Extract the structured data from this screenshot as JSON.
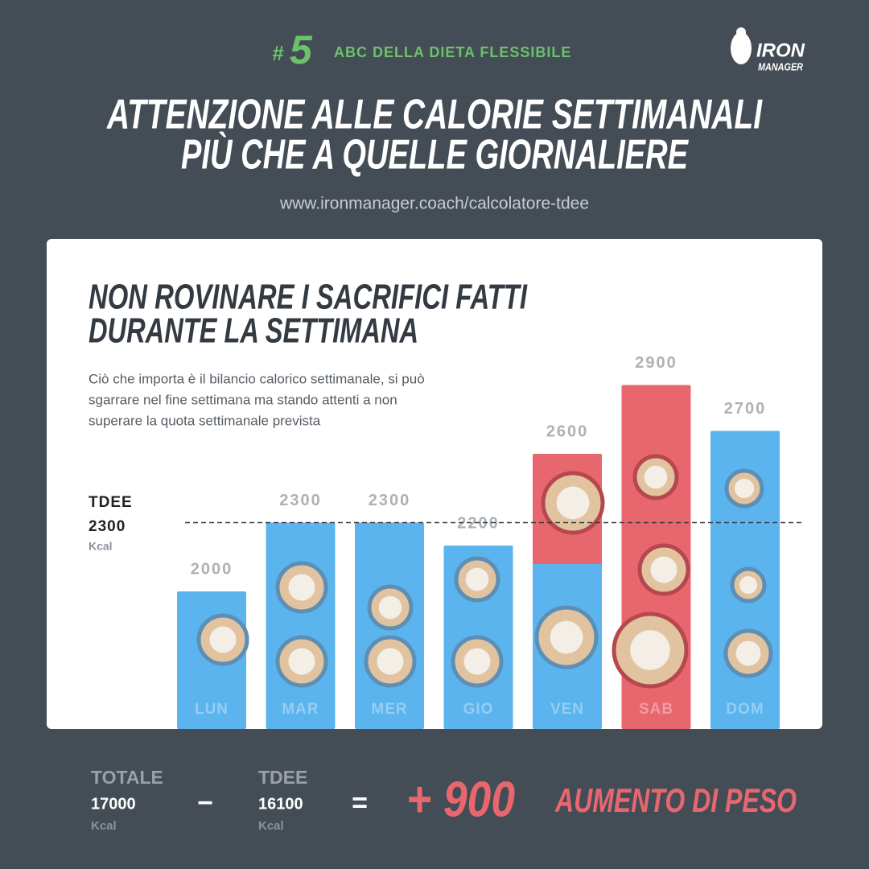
{
  "header": {
    "number_sign": "#",
    "number": "5",
    "series": "ABC DELLA DIETA FLESSIBILE",
    "logo": [
      "IRON",
      "MANAGER"
    ],
    "title": [
      "ATTENZIONE ALLE CALORIE SETTIMANALI",
      "PIÙ CHE A QUELLE GIORNALIERE"
    ],
    "url": "www.ironmanager.coach/calcolatore-tdee"
  },
  "card": {
    "title": [
      "NON ROVINARE I SACRIFICI FATTI",
      "DURANTE LA SETTIMANA"
    ],
    "text": [
      "Ciò che importa è il bilancio calorico settimanale, si può",
      "sgarrare nel fine settimana ma stando attenti a non",
      "superare la quota settimanale prevista"
    ]
  },
  "chart_data": {
    "type": "bar",
    "categories": [
      "LUN",
      "MAR",
      "MER",
      "GIO",
      "VEN",
      "SAB",
      "DOM"
    ],
    "values": [
      2000,
      2300,
      2300,
      2200,
      2600,
      2900,
      2700
    ],
    "colors": [
      "#5bb4ee",
      "#5bb4ee",
      "#5bb4ee",
      "#5bb4ee",
      [
        "#e8676f",
        "#5bb4ee"
      ],
      "#e8676f",
      "#5bb4ee"
    ],
    "ylim": [
      1400,
      3600
    ],
    "reference": {
      "label": "TDEE",
      "value": 2300,
      "unit": "Kcal"
    }
  },
  "footer": {
    "total_label": "TOTALE",
    "total": "17000",
    "total_unit": "Kcal",
    "minus": "−",
    "tdee_label": "TDEE",
    "tdee": "16100",
    "tdee_unit": "Kcal",
    "equals": "=",
    "result": "+ 900",
    "result_label": "AUMENTO DI PESO"
  }
}
